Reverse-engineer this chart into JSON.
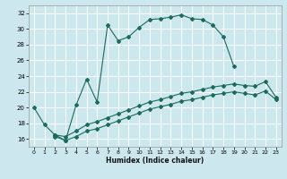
{
  "xlabel": "Humidex (Indice chaleur)",
  "background_color": "#cce8ee",
  "grid_color": "#ffffff",
  "line_color": "#1a6b5a",
  "xlim": [
    -0.5,
    23.5
  ],
  "ylim": [
    15,
    33
  ],
  "yticks": [
    16,
    18,
    20,
    22,
    24,
    26,
    28,
    30,
    32
  ],
  "xticks": [
    0,
    1,
    2,
    3,
    4,
    5,
    6,
    7,
    8,
    9,
    10,
    11,
    12,
    13,
    14,
    15,
    16,
    17,
    18,
    19,
    20,
    21,
    22,
    23
  ],
  "line1_x": [
    0,
    1,
    2,
    3,
    4,
    5,
    6,
    7,
    8,
    9,
    10,
    11,
    12,
    13,
    14,
    15,
    16,
    17,
    18,
    19
  ],
  "line1_y": [
    20.0,
    17.8,
    16.5,
    15.8,
    20.3,
    23.6,
    20.7,
    30.5,
    28.5,
    29.0,
    30.2,
    31.2,
    31.3,
    31.5,
    31.8,
    31.3,
    31.2,
    30.5,
    29.0,
    25.2
  ],
  "line2_x": [
    2,
    3,
    4,
    5,
    6,
    7,
    8,
    9,
    10,
    11,
    12,
    13,
    14,
    15,
    16,
    17,
    18,
    19,
    20,
    21,
    22,
    23
  ],
  "line2_y": [
    16.5,
    16.3,
    17.0,
    17.8,
    18.2,
    18.7,
    19.2,
    19.7,
    20.2,
    20.7,
    21.0,
    21.4,
    21.8,
    22.0,
    22.3,
    22.6,
    22.8,
    23.0,
    22.8,
    22.7,
    23.3,
    21.3
  ],
  "line3_x": [
    2,
    3,
    4,
    5,
    6,
    7,
    8,
    9,
    10,
    11,
    12,
    13,
    14,
    15,
    16,
    17,
    18,
    19,
    20,
    21,
    22,
    23
  ],
  "line3_y": [
    16.3,
    15.8,
    16.3,
    17.0,
    17.3,
    17.8,
    18.3,
    18.8,
    19.3,
    19.8,
    20.1,
    20.4,
    20.8,
    21.0,
    21.3,
    21.6,
    21.8,
    22.0,
    21.8,
    21.6,
    22.1,
    21.0
  ]
}
